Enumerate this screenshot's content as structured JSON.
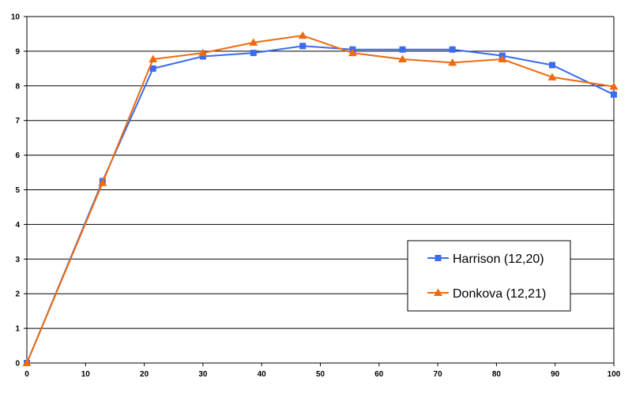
{
  "chart_data": {
    "type": "line",
    "title": "",
    "xlabel": "",
    "ylabel": "",
    "xlim": [
      0,
      100
    ],
    "ylim": [
      0,
      10
    ],
    "x_ticks": [
      0,
      10,
      20,
      30,
      40,
      50,
      60,
      70,
      80,
      90,
      100
    ],
    "y_ticks": [
      0,
      1,
      2,
      3,
      4,
      5,
      6,
      7,
      8,
      9,
      10
    ],
    "grid": "horizontal",
    "legend_position": "lower-right",
    "series": [
      {
        "name": "Harrison (12,20)",
        "color": "#3b6cf0",
        "marker": "square",
        "points": [
          [
            0,
            0
          ],
          [
            12.9,
            5.25
          ],
          [
            21.5,
            8.5
          ],
          [
            30,
            8.85
          ],
          [
            38.6,
            8.95
          ],
          [
            47,
            9.15
          ],
          [
            55.5,
            9.05
          ],
          [
            64,
            9.05
          ],
          [
            72.5,
            9.05
          ],
          [
            81,
            8.87
          ],
          [
            89.5,
            8.6
          ],
          [
            100,
            7.75
          ]
        ]
      },
      {
        "name": "Donkova (12,21)",
        "color": "#ee6a10",
        "marker": "triangle",
        "points": [
          [
            0,
            0
          ],
          [
            12.9,
            5.2
          ],
          [
            21.5,
            8.77
          ],
          [
            30,
            8.95
          ],
          [
            38.6,
            9.25
          ],
          [
            47,
            9.45
          ],
          [
            55.5,
            8.95
          ],
          [
            64,
            8.77
          ],
          [
            72.5,
            8.67
          ],
          [
            81,
            8.77
          ],
          [
            89.5,
            8.25
          ],
          [
            100,
            7.98
          ]
        ]
      }
    ]
  }
}
